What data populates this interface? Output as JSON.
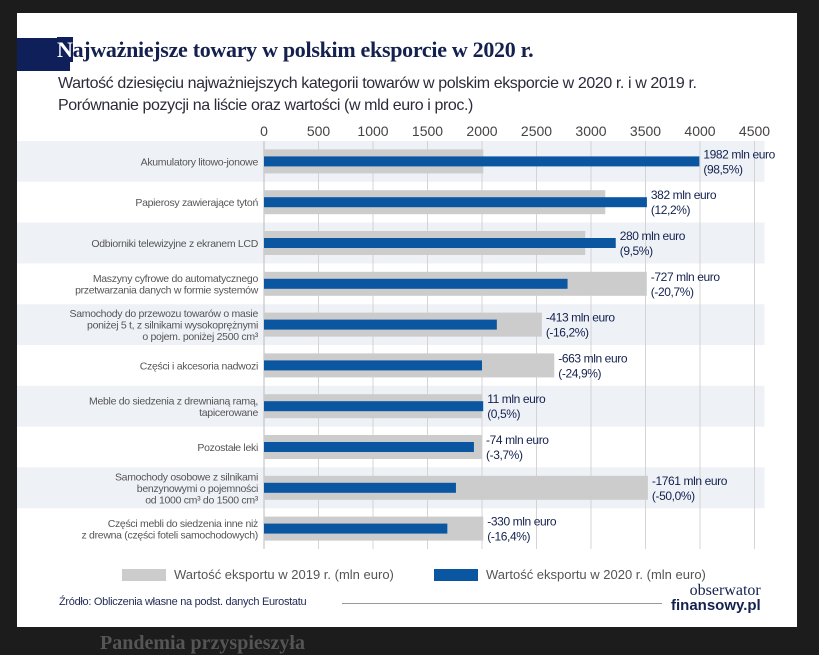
{
  "background": {
    "article_heading": "Pandemia przyspieszyła"
  },
  "title": "Najważniejsze towary w polskim eksporcie w 2020 r.",
  "title_first_letter": "N",
  "title_rest": "ajważniejsze towary w polskim eksporcie w 2020 r.",
  "subtitle_line1": "Wartość dziesięciu najważniejszych kategorii towarów w polskim eksporcie w 2020 r. i w 2019 r.",
  "subtitle_line2": "Porównanie pozycji na liście oraz wartości (w mld euro i proc.)",
  "source": "Źródło: Obliczenia własne na podst. danych Eurostatu",
  "logo": {
    "line1": "obserwator",
    "line2": "finansowy.pl"
  },
  "colors": {
    "series_2019": "#cccccc",
    "series_2020": "#0b56a0",
    "title_navy": "#0f1f5a",
    "row_band": "#eef1f6"
  },
  "chart_data": {
    "type": "bar",
    "orientation": "horizontal",
    "xlim": [
      0,
      4500
    ],
    "xticks": [
      "0",
      "500",
      "1000",
      "1500",
      "2000",
      "2500",
      "3000",
      "3500",
      "4000",
      "4500"
    ],
    "grid": true,
    "legend_placement": "bottom",
    "categories": [
      [
        "Akumulatory litowo-jonowe"
      ],
      [
        "Papierosy zawierające tytoń"
      ],
      [
        "Odbiorniki telewizyjne z ekranem LCD"
      ],
      [
        "Maszyny cyfrowe do automatycznego",
        "przetwarzania danych w formie systemów"
      ],
      [
        "Samochody do przewozu towarów o masie",
        "poniżej 5 t, z silnikami wysokoprężnymi",
        "o pojem. poniżej 2500 cm³"
      ],
      [
        "Części i akcesoria nadwozi"
      ],
      [
        "Meble do siedzenia z drewnianą ramą,",
        "tapicerowane"
      ],
      [
        "Pozostałe leki"
      ],
      [
        "Samochody osobowe z silnikami",
        "benzynowymi o pojemności",
        "od 1000 cm³ do 1500 cm³"
      ],
      [
        "Części mebli do siedzenia inne niż",
        "z drewna (części foteli samochodowych)"
      ]
    ],
    "series": [
      {
        "name": "Wartość eksportu w 2019 r. (mln euro)",
        "values": [
          2012,
          3131,
          2947,
          3512,
          2549,
          2663,
          2000,
          2000,
          3522,
          2012
        ]
      },
      {
        "name": "Wartość eksportu w 2020 r. (mln euro)",
        "values": [
          3994,
          3513,
          3227,
          2785,
          2136,
          2000,
          2011,
          1926,
          1761,
          1682
        ]
      }
    ],
    "labels": [
      [
        "1982 mln euro",
        "(98,5%)"
      ],
      [
        "382 mln euro",
        "(12,2%)"
      ],
      [
        "280 mln euro",
        "(9,5%)"
      ],
      [
        "-727 mln euro",
        "(-20,7%)"
      ],
      [
        "-413 mln euro",
        "(-16,2%)"
      ],
      [
        "-663 mln euro",
        "(-24,9%)"
      ],
      [
        "11 mln euro",
        "(0,5%)"
      ],
      [
        "-74 mln euro",
        "(-3,7%)"
      ],
      [
        "-1761 mln euro",
        "(-50,0%)"
      ],
      [
        "-330 mln euro",
        "(-16,4%)"
      ]
    ]
  }
}
